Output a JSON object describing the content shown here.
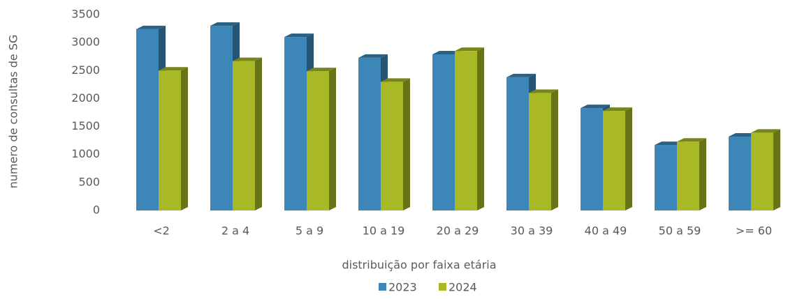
{
  "chart_data": {
    "type": "bar3d",
    "categories": [
      "<2",
      "2 a 4",
      "5 a 9",
      "10 a 19",
      "20 a 29",
      "30 a 39",
      "40 a 49",
      "50 a 59",
      ">= 60"
    ],
    "series": [
      {
        "name": "2023",
        "color": "#3d87b8",
        "values": [
          3240,
          3300,
          3100,
          2730,
          2790,
          2380,
          1830,
          1170,
          1320
        ]
      },
      {
        "name": "2024",
        "color": "#a8b826",
        "values": [
          2500,
          2670,
          2490,
          2300,
          2850,
          2100,
          1780,
          1230,
          1390
        ]
      }
    ],
    "ylim": [
      0,
      3500
    ],
    "yticks": [
      0,
      500,
      1000,
      1500,
      2000,
      2500,
      3000,
      3500
    ],
    "xlabel": "distribuição por faixa etária",
    "ylabel": "numero de consultas de SG",
    "grid": false,
    "legend": "bottom"
  }
}
